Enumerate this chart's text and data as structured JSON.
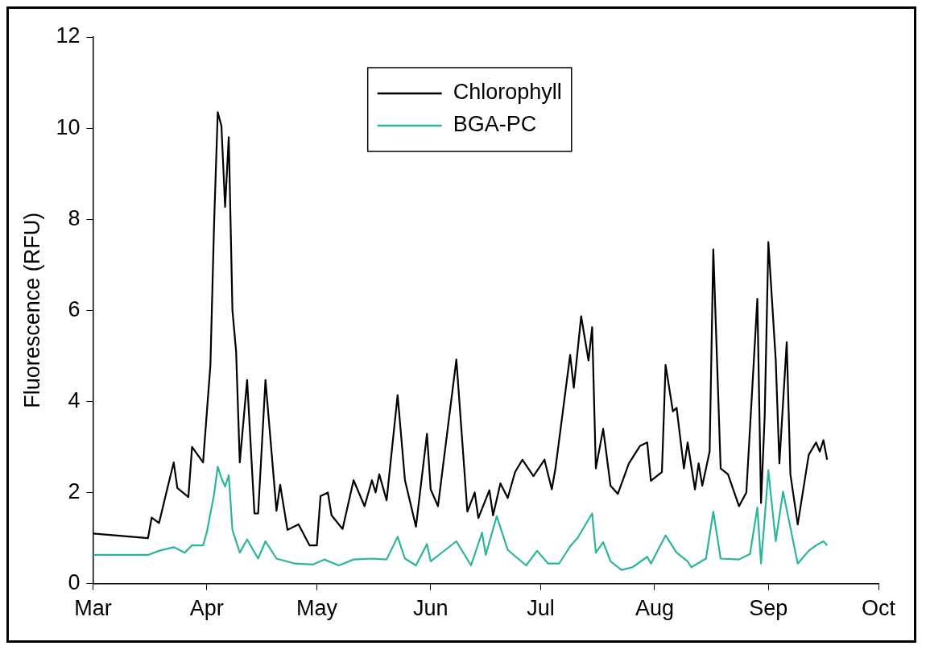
{
  "chart_data": {
    "type": "line",
    "ylabel": "Fluorescence (RFU)",
    "xlim": [
      "--03-01",
      "--10-01"
    ],
    "xticks": [
      {
        "value": "--03-01",
        "label": "Mar"
      },
      {
        "value": "--04-01",
        "label": "Apr"
      },
      {
        "value": "--05-01",
        "label": "May"
      },
      {
        "value": "--06-01",
        "label": "Jun"
      },
      {
        "value": "--07-01",
        "label": "Jul"
      },
      {
        "value": "--08-01",
        "label": "Aug"
      },
      {
        "value": "--09-01",
        "label": "Sep"
      },
      {
        "value": "--10-01",
        "label": "Oct"
      }
    ],
    "ylim": [
      0,
      12
    ],
    "yticks": [
      0,
      2,
      4,
      6,
      8,
      10,
      12
    ],
    "grid": false,
    "legend": "top",
    "marker": "none",
    "line_style": "solid",
    "series": [
      {
        "name": "Chlorophyll",
        "color": "#000000",
        "x": [
          "--03-01",
          "--03-16",
          "--03-17",
          "--03-19",
          "--03-21",
          "--03-23",
          "--03-24",
          "--03-27",
          "--03-28",
          "--03-31",
          "--04-02",
          "--04-03",
          "--04-04",
          "--04-05",
          "--04-06",
          "--04-07",
          "--04-08",
          "--04-09",
          "--04-10",
          "--04-12",
          "--04-14",
          "--04-15",
          "--04-17",
          "--04-20",
          "--04-21",
          "--04-23",
          "--04-26",
          "--04-29",
          "--05-01",
          "--05-02",
          "--05-04",
          "--05-05",
          "--05-08",
          "--05-11",
          "--05-14",
          "--05-16",
          "--05-17",
          "--05-18",
          "--05-20",
          "--05-23",
          "--05-25",
          "--05-28",
          "--05-31",
          "--06-01",
          "--06-03",
          "--06-08",
          "--06-11",
          "--06-13",
          "--06-14",
          "--06-17",
          "--06-18",
          "--06-20",
          "--06-22",
          "--06-24",
          "--06-26",
          "--06-29",
          "--07-02",
          "--07-04",
          "--07-05",
          "--07-09",
          "--07-10",
          "--07-12",
          "--07-14",
          "--07-15",
          "--07-16",
          "--07-18",
          "--07-20",
          "--07-22",
          "--07-25",
          "--07-28",
          "--07-30",
          "--07-31",
          "--08-03",
          "--08-04",
          "--08-06",
          "--08-07",
          "--08-09",
          "--08-10",
          "--08-12",
          "--08-13",
          "--08-14",
          "--08-16",
          "--08-17",
          "--08-19",
          "--08-21",
          "--08-24",
          "--08-26",
          "--08-29",
          "--08-30",
          "--08-31",
          "--09-01",
          "--09-03",
          "--09-04",
          "--09-06",
          "--09-07",
          "--09-09",
          "--09-12",
          "--09-14",
          "--09-15",
          "--09-16",
          "--09-17"
        ],
        "values": [
          1.1,
          1.0,
          1.45,
          1.33,
          2.0,
          2.66,
          2.1,
          1.9,
          3.0,
          2.66,
          4.8,
          7.9,
          10.35,
          10.05,
          8.27,
          9.8,
          6.0,
          5.1,
          2.66,
          4.47,
          1.54,
          1.54,
          4.47,
          1.6,
          2.17,
          1.18,
          1.3,
          0.84,
          0.84,
          1.92,
          2.0,
          1.5,
          1.2,
          2.27,
          1.7,
          2.27,
          2.0,
          2.4,
          1.83,
          4.14,
          2.27,
          1.25,
          3.29,
          2.07,
          1.7,
          4.92,
          1.58,
          2.0,
          1.44,
          2.05,
          1.5,
          2.2,
          1.88,
          2.45,
          2.72,
          2.36,
          2.72,
          2.07,
          2.53,
          5.02,
          4.3,
          5.87,
          4.9,
          5.63,
          2.53,
          3.4,
          2.15,
          1.97,
          2.64,
          3.02,
          3.1,
          2.26,
          2.45,
          4.8,
          3.78,
          3.86,
          2.53,
          3.1,
          2.07,
          2.64,
          2.15,
          2.9,
          7.34,
          2.53,
          2.4,
          1.7,
          2.0,
          6.25,
          1.77,
          3.67,
          7.5,
          4.92,
          2.64,
          5.3,
          2.4,
          1.3,
          2.83,
          3.1,
          2.9,
          3.15,
          2.72
        ]
      },
      {
        "name": "BGA-PC",
        "color": "#2bb59a",
        "x": [
          "--03-01",
          "--03-16",
          "--03-19",
          "--03-23",
          "--03-26",
          "--03-28",
          "--03-31",
          "--04-01",
          "--04-03",
          "--04-04",
          "--04-05",
          "--04-06",
          "--04-07",
          "--04-08",
          "--04-10",
          "--04-12",
          "--04-15",
          "--04-17",
          "--04-20",
          "--04-25",
          "--04-30",
          "--05-03",
          "--05-07",
          "--05-11",
          "--05-16",
          "--05-20",
          "--05-23",
          "--05-25",
          "--05-28",
          "--05-31",
          "--06-01",
          "--06-05",
          "--06-08",
          "--06-12",
          "--06-15",
          "--06-16",
          "--06-19",
          "--06-22",
          "--06-27",
          "--06-30",
          "--07-03",
          "--07-06",
          "--07-09",
          "--07-11",
          "--07-15",
          "--07-16",
          "--07-18",
          "--07-20",
          "--07-23",
          "--07-26",
          "--07-30",
          "--07-31",
          "--08-04",
          "--08-07",
          "--08-10",
          "--08-11",
          "--08-15",
          "--08-17",
          "--08-19",
          "--08-24",
          "--08-27",
          "--08-29",
          "--08-30",
          "--08-31",
          "--09-01",
          "--09-03",
          "--09-05",
          "--09-09",
          "--09-12",
          "--09-14",
          "--09-16",
          "--09-17"
        ],
        "values": [
          0.63,
          0.63,
          0.72,
          0.8,
          0.68,
          0.84,
          0.84,
          1.12,
          1.96,
          2.57,
          2.32,
          2.13,
          2.38,
          1.18,
          0.68,
          0.97,
          0.55,
          0.93,
          0.55,
          0.44,
          0.42,
          0.53,
          0.4,
          0.53,
          0.55,
          0.53,
          1.03,
          0.55,
          0.4,
          0.87,
          0.49,
          0.74,
          0.93,
          0.4,
          1.12,
          0.63,
          1.48,
          0.74,
          0.4,
          0.72,
          0.44,
          0.44,
          0.82,
          1.0,
          1.54,
          0.68,
          0.91,
          0.49,
          0.3,
          0.36,
          0.59,
          0.44,
          1.06,
          0.68,
          0.49,
          0.36,
          0.55,
          1.58,
          0.55,
          0.53,
          0.65,
          1.67,
          0.44,
          1.44,
          2.49,
          0.93,
          2.02,
          0.44,
          0.72,
          0.84,
          0.93,
          0.84
        ]
      }
    ]
  }
}
